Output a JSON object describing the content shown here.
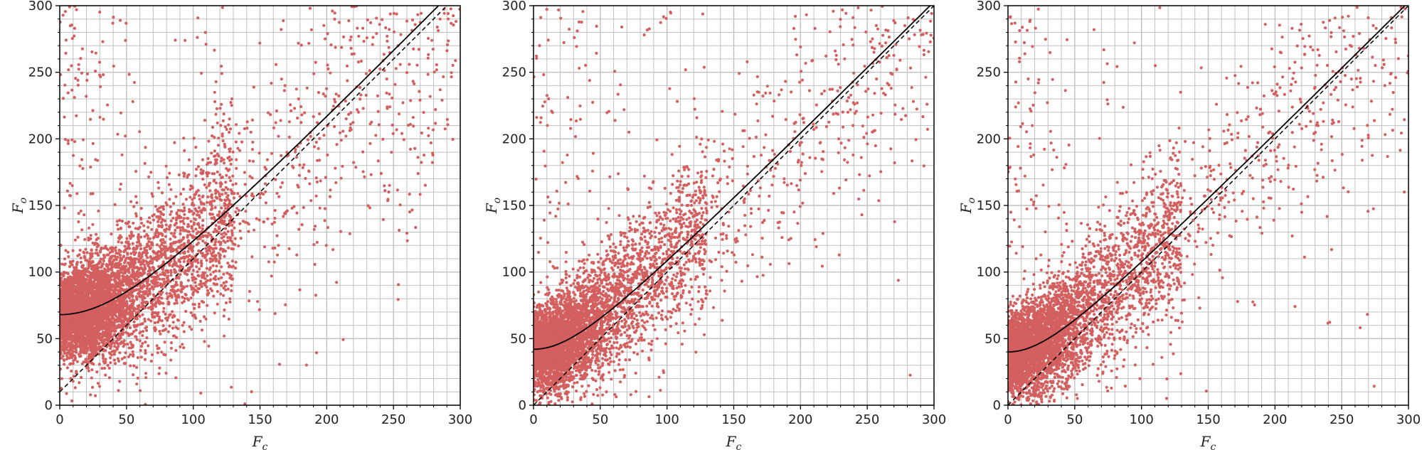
{
  "colors": {
    "points": "#d35f5f",
    "grid": "#c0c0c0",
    "axis": "#000000",
    "curve": "#000000",
    "identity": "#000000"
  },
  "chart_data": [
    {
      "type": "scatter",
      "title": "",
      "xlabel": "F",
      "xlabel_sub": "c",
      "ylabel": "F",
      "ylabel_sub": "o",
      "xlim": [
        0,
        300
      ],
      "ylim": [
        0,
        300
      ],
      "xticks": [
        "0",
        "50",
        "100",
        "150",
        "200",
        "250",
        "300"
      ],
      "yticks": [
        "0",
        "50",
        "100",
        "150",
        "200",
        "250",
        "300"
      ],
      "grid": true,
      "series": [
        {
          "kind": "points",
          "count": 6000,
          "intercept": 68,
          "spread": 0.55
        },
        {
          "kind": "fit_curve",
          "style": "solid",
          "intercept": 68,
          "slope": 1.03
        },
        {
          "kind": "identity",
          "style": "dashed",
          "offset": 10
        }
      ]
    },
    {
      "type": "scatter",
      "title": "",
      "xlabel": "F",
      "xlabel_sub": "c",
      "ylabel": "F",
      "ylabel_sub": "o",
      "xlim": [
        0,
        300
      ],
      "ylim": [
        0,
        300
      ],
      "xticks": [
        "0",
        "50",
        "100",
        "150",
        "200",
        "250",
        "300"
      ],
      "yticks": [
        "0",
        "50",
        "100",
        "150",
        "200",
        "250",
        "300"
      ],
      "grid": true,
      "series": [
        {
          "kind": "points",
          "count": 5000,
          "intercept": 42,
          "spread": 0.45
        },
        {
          "kind": "fit_curve",
          "style": "solid",
          "intercept": 42,
          "slope": 1.0
        },
        {
          "kind": "identity",
          "style": "dashed",
          "offset": 0
        }
      ]
    },
    {
      "type": "scatter",
      "title": "",
      "xlabel": "F",
      "xlabel_sub": "c",
      "ylabel": "F",
      "ylabel_sub": "o",
      "xlim": [
        0,
        300
      ],
      "ylim": [
        0,
        300
      ],
      "xticks": [
        "0",
        "50",
        "100",
        "150",
        "200",
        "250",
        "300"
      ],
      "yticks": [
        "0",
        "50",
        "100",
        "150",
        "200",
        "250",
        "300"
      ],
      "grid": true,
      "series": [
        {
          "kind": "points",
          "count": 5000,
          "intercept": 40,
          "spread": 0.45
        },
        {
          "kind": "fit_curve",
          "style": "solid",
          "intercept": 40,
          "slope": 1.0
        },
        {
          "kind": "identity",
          "style": "dashed",
          "offset": 0
        }
      ]
    }
  ]
}
